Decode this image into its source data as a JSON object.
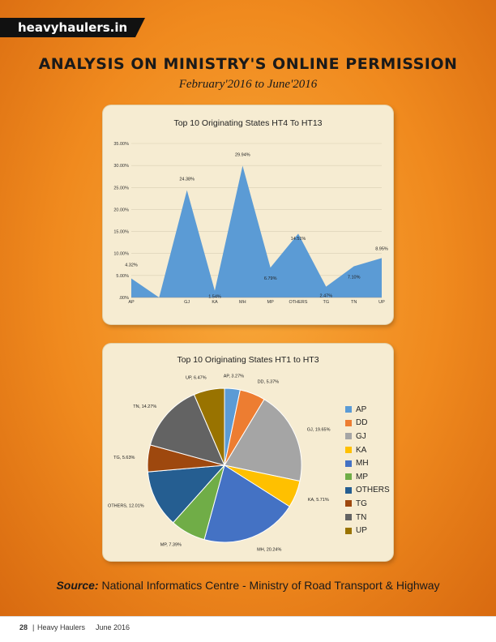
{
  "header": {
    "brand": "heavyhaulers.in"
  },
  "page_title": "ANALYSIS ON MINISTRY'S ONLINE PERMISSION",
  "page_subtitle": "February'2016 to June'2016",
  "source": {
    "label": "Source:",
    "text": "National Informatics Centre - Ministry of Road Transport & Highway"
  },
  "footer": {
    "page": "28",
    "sep": "|",
    "magazine": "Heavy Haulers",
    "issue": "June 2016"
  },
  "chart_data": [
    {
      "type": "area",
      "title": "Top 10 Originating States HT4 To HT13",
      "categories": [
        "AP",
        "DD",
        "GJ",
        "KA",
        "MH",
        "MP",
        "OTHERS",
        "TG",
        "TN",
        "UP"
      ],
      "x_tick_labels": [
        "AP",
        "GJ",
        "KA",
        "MH",
        "MP",
        "OTHERS",
        "TG",
        "TN",
        "UP"
      ],
      "values": [
        4.32,
        0.0,
        24.38,
        1.54,
        29.94,
        6.79,
        14.51,
        2.47,
        7.1,
        8.95
      ],
      "data_labels": [
        "4.32%",
        "",
        "24.38%",
        "1.54%",
        "29.94%",
        "6.79%",
        "14.51%",
        "2.47%",
        "7.10%",
        "8.95%"
      ],
      "y_ticks": [
        ".00%",
        "5.00%",
        "10.00%",
        "15.00%",
        "20.00%",
        "25.00%",
        "30.00%",
        "35.00%"
      ],
      "ylim": [
        0,
        35
      ],
      "color": "#5b9bd5",
      "grid": true
    },
    {
      "type": "pie",
      "title": "Top 10 Originating States HT1 to HT3",
      "labels": [
        "AP",
        "DD",
        "GJ",
        "KA",
        "MH",
        "MP",
        "OTHERS",
        "TG",
        "TN",
        "UP"
      ],
      "values": [
        3.27,
        5.37,
        19.65,
        5.71,
        20.24,
        7.39,
        12.01,
        5.63,
        14.27,
        6.47
      ],
      "data_labels": [
        "AP, 3.27%",
        "DD, 5.37%",
        "GJ, 19.65%",
        "KA, 5.71%",
        "MH, 20.24%",
        "MP, 7.39%",
        "OTHERS, 12.01%",
        "TG, 5.63%",
        "TN, 14.27%",
        "UP, 6.47%"
      ],
      "colors": [
        "#5b9bd5",
        "#ed7d31",
        "#a5a5a5",
        "#ffc000",
        "#4472c4",
        "#70ad47",
        "#255e91",
        "#9e480e",
        "#636363",
        "#997300"
      ],
      "legend": "right"
    }
  ]
}
